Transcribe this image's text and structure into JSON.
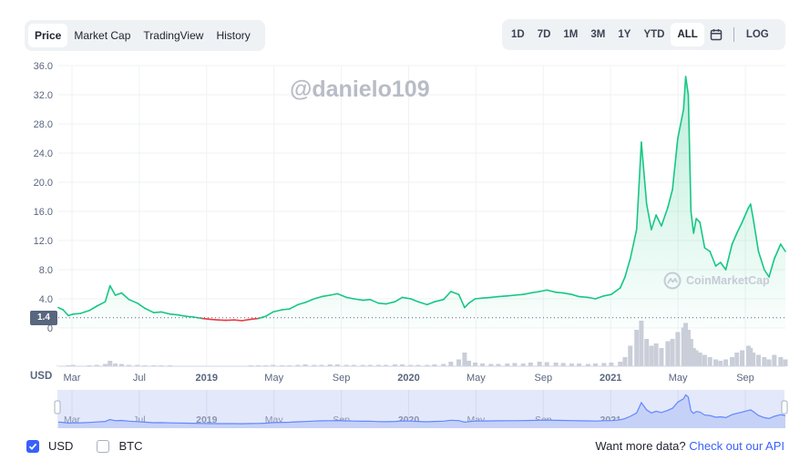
{
  "tabs": [
    "Price",
    "Market Cap",
    "TradingView",
    "History"
  ],
  "active_tab": 0,
  "ranges": [
    "1D",
    "7D",
    "1M",
    "3M",
    "1Y",
    "YTD",
    "ALL"
  ],
  "active_range": 6,
  "log_label": "LOG",
  "calendar_icon": "calendar-icon",
  "watermark_text": "@danielo109",
  "brand_text": "CoinMarketCap",
  "colors": {
    "up": "#16c784",
    "down": "#ea3943",
    "accent": "#3861fb",
    "grid": "#eff2f5",
    "nav": "#6188ff"
  },
  "axis_currency": "USD",
  "current_price_label": "1.4",
  "legend": {
    "usd": "USD",
    "btc": "BTC",
    "usd_checked": true,
    "btc_checked": false
  },
  "api_text": "Want more data?",
  "api_link": "Check out our API",
  "chart_data": {
    "type": "area",
    "title": "",
    "xlabel": "",
    "ylabel": "",
    "ylim": [
      0,
      36
    ],
    "yticks": [
      "0",
      "4.0",
      "8.0",
      "12.0",
      "16.0",
      "20.0",
      "24.0",
      "28.0",
      "32.0",
      "36.0"
    ],
    "xticks": [
      "Mar",
      "Jul",
      "2019",
      "May",
      "Sep",
      "2020",
      "May",
      "Sep",
      "2021",
      "May",
      "Sep"
    ],
    "xticks_bold": [
      "2019",
      "2020",
      "2021"
    ],
    "xlim": [
      "2018-02-01",
      "2021-11-10"
    ],
    "grid": true,
    "baseline": 1.4,
    "series": [
      {
        "x": [
          "2018-02-01",
          "2018-02-10",
          "2018-02-20",
          "2018-03-01",
          "2018-03-15",
          "2018-04-01",
          "2018-04-15",
          "2018-05-01",
          "2018-05-10",
          "2018-05-20",
          "2018-06-01",
          "2018-06-15",
          "2018-07-01",
          "2018-07-15",
          "2018-08-01",
          "2018-08-15",
          "2018-09-01",
          "2018-09-15",
          "2018-10-01",
          "2018-10-15",
          "2018-11-01",
          "2018-11-15",
          "2018-12-01",
          "2018-12-15",
          "2019-01-01",
          "2019-01-15",
          "2019-02-01",
          "2019-02-15",
          "2019-03-01",
          "2019-03-15",
          "2019-04-01",
          "2019-04-15",
          "2019-05-01",
          "2019-05-15",
          "2019-06-01",
          "2019-06-15",
          "2019-07-01",
          "2019-07-15",
          "2019-08-01",
          "2019-08-15",
          "2019-09-01",
          "2019-09-15",
          "2019-10-01",
          "2019-10-15",
          "2019-11-01",
          "2019-11-15",
          "2019-12-01",
          "2019-12-15",
          "2020-01-01",
          "2020-01-15",
          "2020-02-01",
          "2020-02-15",
          "2020-03-01",
          "2020-03-12",
          "2020-03-20",
          "2020-04-01",
          "2020-04-15",
          "2020-05-01",
          "2020-05-15",
          "2020-06-01",
          "2020-06-15",
          "2020-07-01",
          "2020-07-15",
          "2020-08-01",
          "2020-08-15",
          "2020-09-01",
          "2020-09-15",
          "2020-10-01",
          "2020-10-15",
          "2020-11-01",
          "2020-11-15",
          "2020-12-01",
          "2020-12-15",
          "2021-01-01",
          "2021-01-10",
          "2021-01-20",
          "2021-02-01",
          "2021-02-10",
          "2021-02-20",
          "2021-03-01",
          "2021-03-10",
          "2021-03-20",
          "2021-04-01",
          "2021-04-10",
          "2021-04-20",
          "2021-05-01",
          "2021-05-05",
          "2021-05-10",
          "2021-05-15",
          "2021-05-20",
          "2021-05-25",
          "2021-06-01",
          "2021-06-10",
          "2021-06-20",
          "2021-07-01",
          "2021-07-10",
          "2021-07-20",
          "2021-08-01",
          "2021-08-10",
          "2021-08-20",
          "2021-09-01",
          "2021-09-05",
          "2021-09-10",
          "2021-09-20",
          "2021-10-01",
          "2021-10-10",
          "2021-10-20",
          "2021-11-01",
          "2021-11-10"
        ],
        "y": [
          2.8,
          2.5,
          1.7,
          1.9,
          2.0,
          2.4,
          3.0,
          3.6,
          5.8,
          4.5,
          4.8,
          3.9,
          3.4,
          2.7,
          2.1,
          2.2,
          1.9,
          1.8,
          1.6,
          1.5,
          1.3,
          1.2,
          1.1,
          1.05,
          1.1,
          1.0,
          1.2,
          1.3,
          1.6,
          2.2,
          2.5,
          2.6,
          3.2,
          3.5,
          4.0,
          4.3,
          4.5,
          4.7,
          4.2,
          4.0,
          3.8,
          3.9,
          3.4,
          3.3,
          3.6,
          4.2,
          4.0,
          3.6,
          3.2,
          3.6,
          3.9,
          5.0,
          4.6,
          2.8,
          3.4,
          4.0,
          4.1,
          4.2,
          4.3,
          4.4,
          4.5,
          4.6,
          4.8,
          5.0,
          5.2,
          4.9,
          4.8,
          4.6,
          4.3,
          4.2,
          4.0,
          4.4,
          4.6,
          5.5,
          7.0,
          9.5,
          13.5,
          25.5,
          17.0,
          13.5,
          15.5,
          14.0,
          16.5,
          19.0,
          26.0,
          30.0,
          34.5,
          32.0,
          16.0,
          13.0,
          15.0,
          14.5,
          11.0,
          10.5,
          8.5,
          9.0,
          8.0,
          11.5,
          13.0,
          14.5,
          16.5,
          17.0,
          15.0,
          10.5,
          8.0,
          7.0,
          9.5,
          11.5,
          10.5
        ],
        "volume": [
          0.01,
          0.01,
          0.02,
          0.03,
          0.01,
          0.02,
          0.03,
          0.05,
          0.12,
          0.06,
          0.05,
          0.03,
          0.03,
          0.02,
          0.02,
          0.02,
          0.02,
          0.01,
          0.01,
          0.01,
          0.01,
          0.01,
          0.01,
          0.01,
          0.01,
          0.01,
          0.02,
          0.02,
          0.02,
          0.03,
          0.02,
          0.02,
          0.03,
          0.04,
          0.03,
          0.03,
          0.04,
          0.04,
          0.03,
          0.03,
          0.03,
          0.03,
          0.03,
          0.03,
          0.04,
          0.04,
          0.03,
          0.03,
          0.03,
          0.04,
          0.05,
          0.1,
          0.15,
          0.3,
          0.12,
          0.08,
          0.06,
          0.05,
          0.05,
          0.06,
          0.07,
          0.06,
          0.08,
          0.1,
          0.09,
          0.08,
          0.07,
          0.06,
          0.06,
          0.05,
          0.06,
          0.07,
          0.08,
          0.1,
          0.2,
          0.45,
          0.8,
          1.0,
          0.6,
          0.45,
          0.5,
          0.4,
          0.55,
          0.6,
          0.75,
          0.85,
          0.95,
          0.8,
          0.6,
          0.4,
          0.35,
          0.3,
          0.25,
          0.2,
          0.15,
          0.12,
          0.15,
          0.2,
          0.3,
          0.35,
          0.45,
          0.4,
          0.3,
          0.25,
          0.2,
          0.15,
          0.25,
          0.2,
          0.15
        ]
      }
    ]
  }
}
